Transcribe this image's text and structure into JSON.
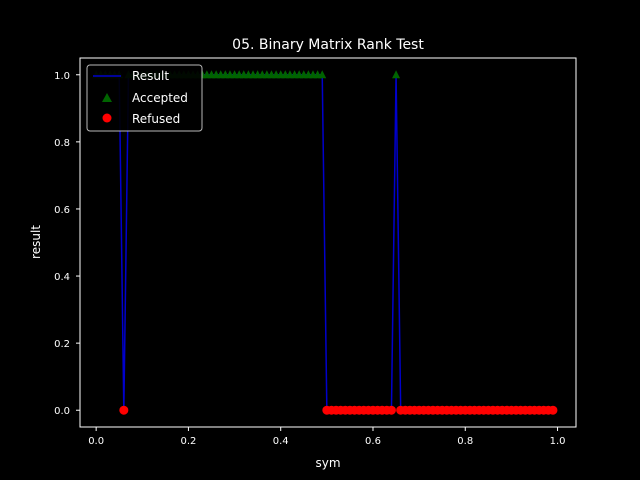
{
  "chart_data": {
    "type": "line",
    "title": "05. Binary Matrix Rank Test",
    "xlabel": "sym",
    "ylabel": "result",
    "xlim": [
      -0.035,
      1.04
    ],
    "ylim": [
      -0.05,
      1.05
    ],
    "xticks": [
      "0.0",
      "0.2",
      "0.4",
      "0.6",
      "0.8",
      "1.0"
    ],
    "xtick_values": [
      0.0,
      0.2,
      0.4,
      0.6,
      0.8,
      1.0
    ],
    "yticks": [
      "0.0",
      "0.2",
      "0.4",
      "0.6",
      "0.8",
      "1.0"
    ],
    "ytick_values": [
      0.0,
      0.2,
      0.4,
      0.6,
      0.8,
      1.0
    ],
    "legend_position": "upper-left",
    "grid": false,
    "colors": {
      "background": "#000000",
      "line": "#0000cc",
      "accepted": "#006400",
      "refused": "#ff0000",
      "text": "#ffffff"
    },
    "series": [
      {
        "name": "Result",
        "style": "line",
        "x": [
          0.0,
          0.01,
          0.02,
          0.03,
          0.04,
          0.05,
          0.06,
          0.07,
          0.08,
          0.09,
          0.1,
          0.11,
          0.12,
          0.13,
          0.14,
          0.15,
          0.16,
          0.17,
          0.18,
          0.19,
          0.2,
          0.21,
          0.22,
          0.23,
          0.24,
          0.25,
          0.26,
          0.27,
          0.28,
          0.29,
          0.3,
          0.31,
          0.32,
          0.33,
          0.34,
          0.35,
          0.36,
          0.37,
          0.38,
          0.39,
          0.4,
          0.41,
          0.42,
          0.43,
          0.44,
          0.45,
          0.46,
          0.47,
          0.48,
          0.49,
          0.5,
          0.51,
          0.52,
          0.53,
          0.54,
          0.55,
          0.56,
          0.57,
          0.58,
          0.59,
          0.6,
          0.61,
          0.62,
          0.63,
          0.64,
          0.65,
          0.66,
          0.67,
          0.68,
          0.69,
          0.7,
          0.71,
          0.72,
          0.73,
          0.74,
          0.75,
          0.76,
          0.77,
          0.78,
          0.79,
          0.8,
          0.81,
          0.82,
          0.83,
          0.84,
          0.85,
          0.86,
          0.87,
          0.88,
          0.89,
          0.9,
          0.91,
          0.92,
          0.93,
          0.94,
          0.95,
          0.96,
          0.97,
          0.98,
          0.99
        ],
        "y": [
          1,
          1,
          1,
          1,
          1,
          1,
          0,
          1,
          1,
          1,
          1,
          1,
          1,
          1,
          1,
          1,
          1,
          1,
          1,
          1,
          1,
          1,
          1,
          1,
          1,
          1,
          1,
          1,
          1,
          1,
          1,
          1,
          1,
          1,
          1,
          1,
          1,
          1,
          1,
          1,
          1,
          1,
          1,
          1,
          1,
          1,
          1,
          1,
          1,
          1,
          0,
          0,
          0,
          0,
          0,
          0,
          0,
          0,
          0,
          0,
          0,
          0,
          0,
          0,
          0,
          1,
          0,
          0,
          0,
          0,
          0,
          0,
          0,
          0,
          0,
          0,
          0,
          0,
          0,
          0,
          0,
          0,
          0,
          0,
          0,
          0,
          0,
          0,
          0,
          0,
          0,
          0,
          0,
          0,
          0,
          0,
          0,
          0,
          0,
          0
        ]
      },
      {
        "name": "Accepted",
        "style": "triangle-markers",
        "source": "Result where y = 1"
      },
      {
        "name": "Refused",
        "style": "circle-markers",
        "source": "Result where y = 0"
      }
    ]
  }
}
